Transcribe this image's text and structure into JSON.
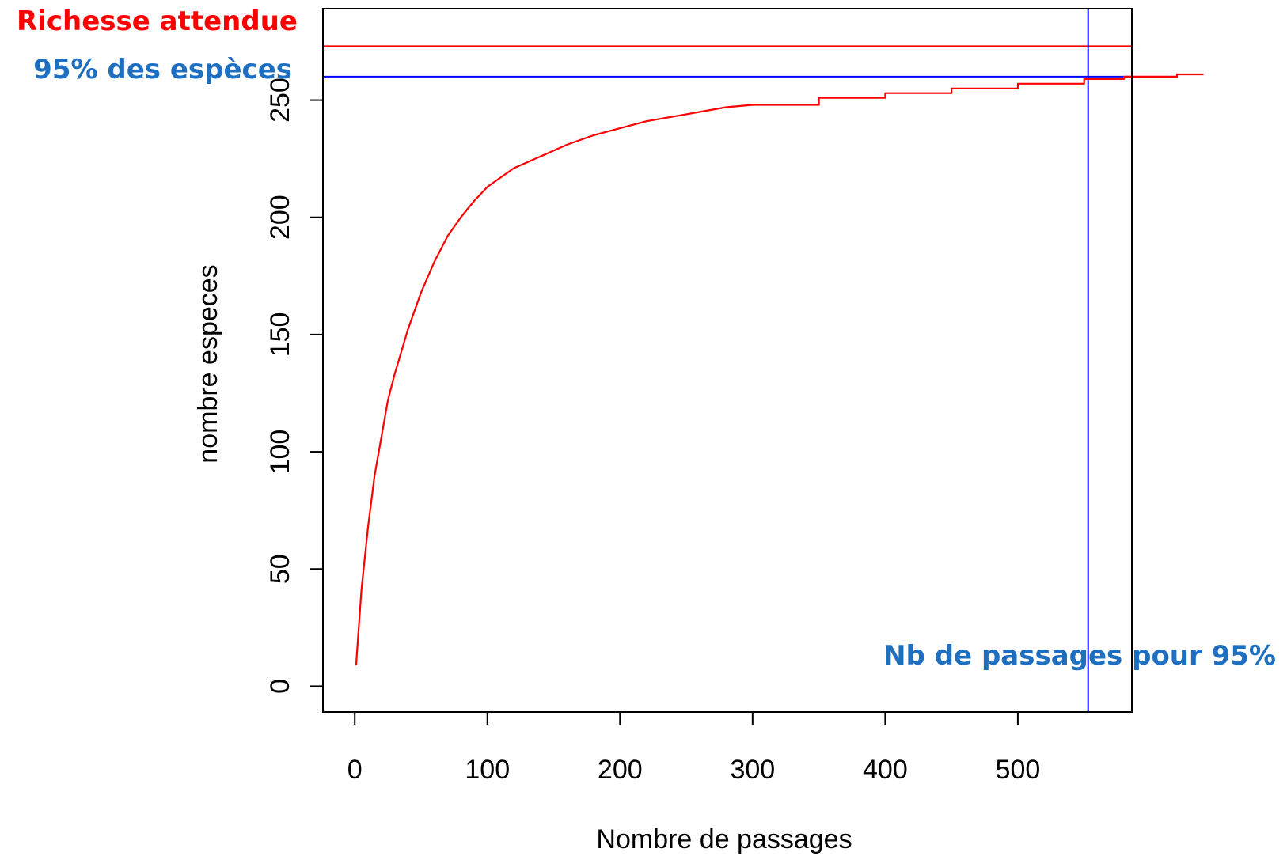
{
  "chart_data": {
    "type": "line",
    "title": "",
    "xlabel": "Nombre de passages",
    "ylabel": "nombre especes",
    "xlim": [
      -24,
      586
    ],
    "ylim": [
      -11,
      289
    ],
    "xticks": [
      0,
      100,
      200,
      300,
      400,
      500
    ],
    "yticks": [
      0,
      50,
      100,
      150,
      200,
      250
    ],
    "grid": false,
    "series": [
      {
        "color": "#ff0000",
        "x": [
          1,
          5,
          10,
          15,
          20,
          25,
          30,
          40,
          50,
          60,
          70,
          80,
          90,
          100,
          120,
          140,
          160,
          180,
          200,
          220,
          250,
          280,
          300,
          350,
          400,
          450,
          500,
          550,
          580,
          600,
          620,
          640
        ],
        "y": [
          9,
          41,
          68,
          90,
          106,
          122,
          133,
          152,
          168,
          181,
          192,
          200,
          207,
          213,
          221,
          226,
          231,
          235,
          238,
          241,
          244,
          247,
          248,
          251,
          253,
          255,
          257,
          259,
          260,
          260,
          261,
          261
        ]
      }
    ],
    "reference_lines": {
      "expected_richness": {
        "axis": "y",
        "value": 273,
        "color": "#ff0000"
      },
      "species_95": {
        "axis": "y",
        "value": 260,
        "color": "#0000ff"
      },
      "passages_95": {
        "axis": "x",
        "value": 553,
        "color": "#0000ff"
      }
    },
    "annotations": {
      "expected_richness_label": "Richesse attendue",
      "species_95_label": "95% des espèces",
      "passages_95_label": "Nb de passages pour 95%"
    },
    "colors": {
      "expected_richness_label": "#ff0000",
      "blue_labels": "#1f6fc0",
      "axis": "#000000"
    }
  }
}
